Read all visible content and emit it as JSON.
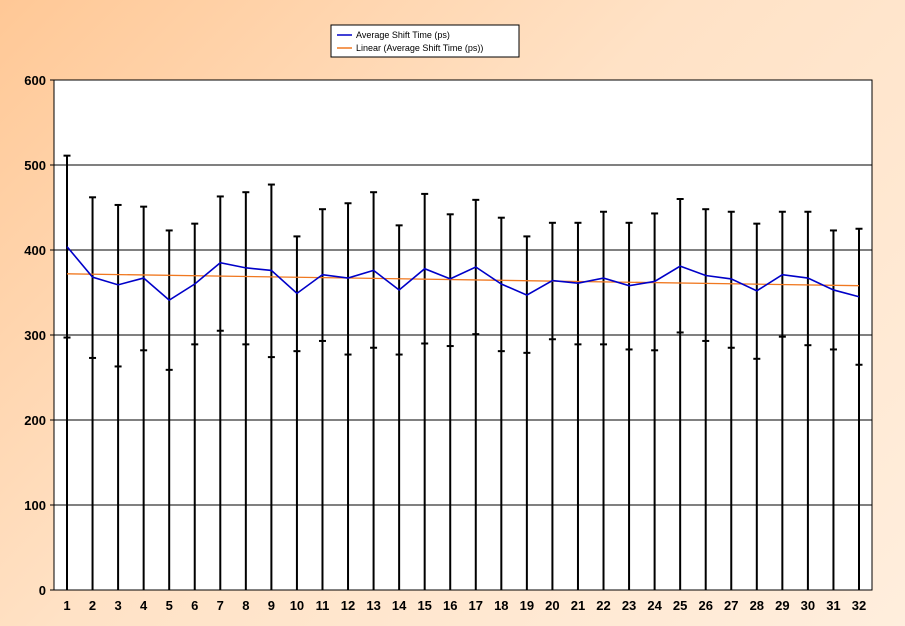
{
  "chart_data": {
    "type": "line",
    "categories": [
      "1",
      "2",
      "3",
      "4",
      "5",
      "6",
      "7",
      "8",
      "9",
      "10",
      "11",
      "12",
      "13",
      "14",
      "15",
      "16",
      "17",
      "18",
      "19",
      "20",
      "21",
      "22",
      "23",
      "24",
      "25",
      "26",
      "27",
      "28",
      "29",
      "30",
      "31",
      "32"
    ],
    "ylim": [
      0,
      600
    ],
    "yticks": [
      "0",
      "100",
      "200",
      "300",
      "400",
      "500",
      "600"
    ],
    "grid": true,
    "legend_position": "top-center",
    "series": [
      {
        "name": "Average Shift Time (ps)",
        "color": "#0000c8",
        "values": [
          404,
          368,
          359,
          367,
          341,
          360,
          385,
          379,
          376,
          349,
          371,
          367,
          376,
          353,
          378,
          366,
          380,
          360,
          347,
          364,
          361,
          367,
          358,
          363,
          381,
          370,
          366,
          352,
          371,
          367,
          353,
          345
        ],
        "error_upper": [
          511,
          462,
          453,
          451,
          423,
          431,
          463,
          468,
          477,
          416,
          448,
          455,
          468,
          429,
          466,
          442,
          459,
          438,
          416,
          432,
          432,
          445,
          432,
          443,
          460,
          448,
          445,
          431,
          445,
          445,
          423,
          425
        ],
        "error_lower": [
          297,
          273,
          263,
          282,
          259,
          289,
          305,
          289,
          274,
          281,
          293,
          277,
          285,
          277,
          290,
          287,
          301,
          281,
          279,
          295,
          289,
          289,
          283,
          282,
          303,
          293,
          285,
          272,
          298,
          288,
          283,
          265
        ]
      },
      {
        "name": "Linear (Average Shift Time (ps))",
        "color": "#f07820",
        "start": 372,
        "end": 358
      }
    ]
  }
}
